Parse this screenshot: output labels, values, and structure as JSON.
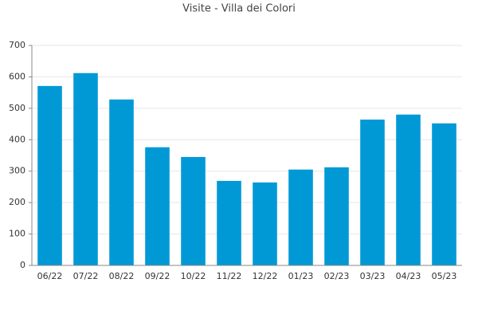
{
  "chart_data": {
    "type": "bar",
    "title": "Visite - Villa dei Colori",
    "categories": [
      "06/22",
      "07/22",
      "08/22",
      "09/22",
      "10/22",
      "11/22",
      "12/22",
      "01/23",
      "02/23",
      "03/23",
      "04/23",
      "05/23"
    ],
    "values": [
      571,
      612,
      528,
      376,
      345,
      269,
      264,
      305,
      312,
      464,
      480,
      452
    ],
    "color": "#0099d6",
    "ylim": [
      0,
      700
    ],
    "yticks": [
      0,
      100,
      200,
      300,
      400,
      500,
      600,
      700
    ],
    "grid": true
  }
}
